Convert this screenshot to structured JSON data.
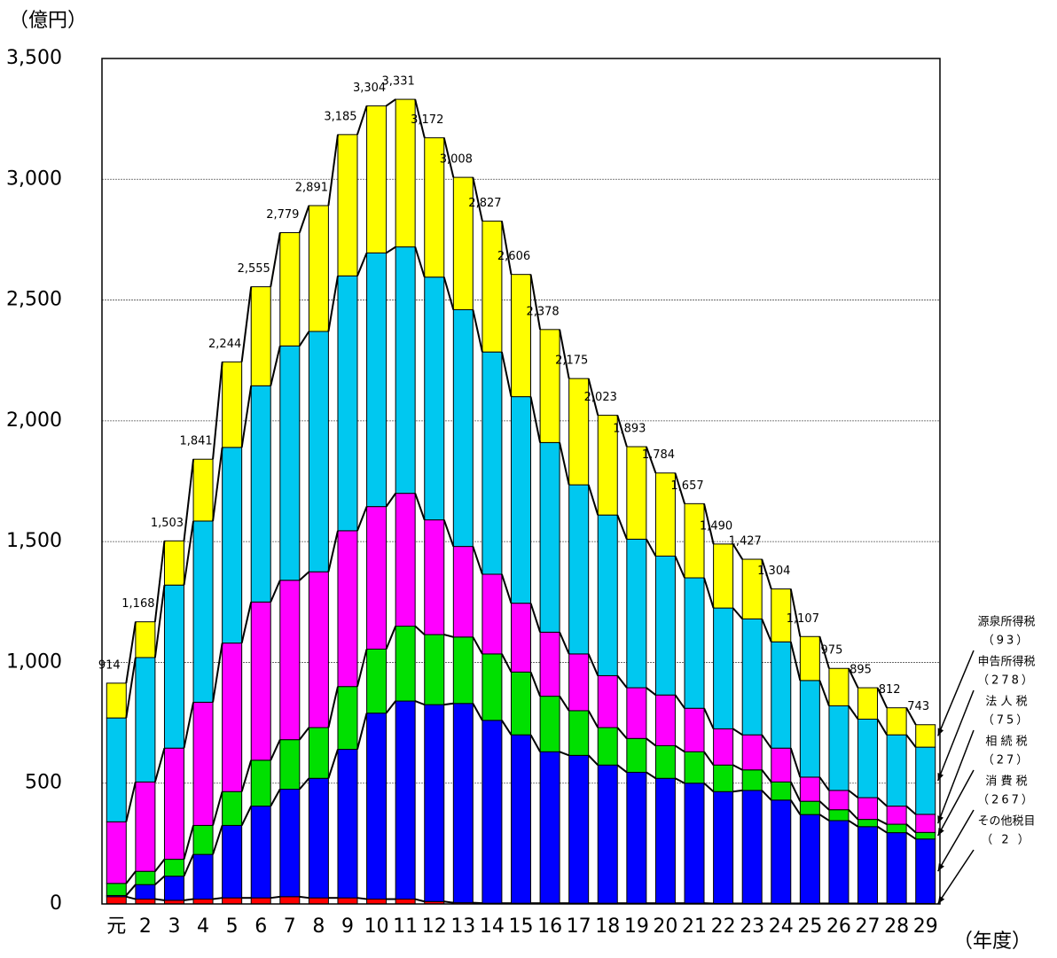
{
  "chart_data": {
    "type": "stacked-bar",
    "y_label": "（億円）",
    "x_label": "（年度）",
    "categories": [
      "元",
      "2",
      "3",
      "4",
      "5",
      "6",
      "7",
      "8",
      "9",
      "10",
      "11",
      "12",
      "13",
      "14",
      "15",
      "16",
      "17",
      "18",
      "19",
      "20",
      "21",
      "22",
      "23",
      "24",
      "25",
      "26",
      "27",
      "28",
      "29"
    ],
    "ylim": [
      0,
      3500
    ],
    "yticks": [
      0,
      500,
      {
        "value": 1000,
        "label": "1,000"
      },
      {
        "value": 1500,
        "label": "1,500"
      },
      {
        "value": 2000,
        "label": "2,000"
      },
      {
        "value": 2500,
        "label": "2,500"
      },
      {
        "value": 3000,
        "label": "3,000"
      },
      {
        "value": 3500,
        "label": "3,500"
      }
    ],
    "grid": true,
    "series": [
      {
        "name": "その他税目",
        "legend_note": "（ 2 ）",
        "color": "#ff0000",
        "values": [
          30,
          20,
          15,
          20,
          25,
          25,
          30,
          25,
          25,
          20,
          20,
          10,
          5,
          3,
          3,
          3,
          3,
          3,
          3,
          3,
          3,
          2,
          2,
          2,
          2,
          2,
          2,
          2,
          2
        ]
      },
      {
        "name": "消 費 税",
        "legend_note": "（267）",
        "color": "#0000ff",
        "values": [
          5,
          60,
          100,
          185,
          300,
          380,
          445,
          495,
          615,
          770,
          820,
          815,
          825,
          757,
          697,
          627,
          612,
          572,
          542,
          517,
          497,
          463,
          468,
          428,
          368,
          343,
          318,
          293,
          267
        ]
      },
      {
        "name": "相 続 税",
        "legend_note": "（27）",
        "color": "#00e000",
        "values": [
          50,
          55,
          70,
          120,
          140,
          190,
          205,
          210,
          260,
          265,
          310,
          290,
          275,
          275,
          260,
          230,
          185,
          155,
          140,
          135,
          130,
          110,
          85,
          75,
          55,
          45,
          30,
          35,
          27
        ]
      },
      {
        "name": "法 人 税",
        "legend_note": "（75）",
        "color": "#ff00ff",
        "values": [
          255,
          370,
          460,
          510,
          615,
          655,
          660,
          645,
          645,
          590,
          550,
          475,
          375,
          330,
          285,
          265,
          235,
          215,
          210,
          210,
          180,
          150,
          145,
          140,
          100,
          80,
          90,
          75,
          75
        ]
      },
      {
        "name": "申告所得税",
        "legend_note": "（278）",
        "color": "#00c8f0",
        "values": [
          430,
          515,
          675,
          750,
          810,
          895,
          970,
          995,
          1055,
          1050,
          1020,
          1005,
          980,
          920,
          855,
          785,
          700,
          665,
          615,
          575,
          540,
          500,
          480,
          440,
          400,
          350,
          325,
          295,
          278
        ]
      },
      {
        "name": "源泉所得税",
        "legend_note": "（93）",
        "color": "#ffff00",
        "values": [
          144,
          148,
          183,
          256,
          354,
          410,
          469,
          521,
          585,
          609,
          611,
          577,
          548,
          542,
          506,
          468,
          440,
          413,
          383,
          344,
          307,
          265,
          247,
          219,
          182,
          155,
          130,
          112,
          93
        ]
      }
    ],
    "totals": {
      "values": [
        914,
        1168,
        1503,
        1841,
        2244,
        2555,
        2779,
        2891,
        3185,
        3304,
        3331,
        3172,
        3008,
        2827,
        2606,
        2378,
        2175,
        2023,
        1893,
        1784,
        1657,
        1490,
        1427,
        1304,
        1107,
        975,
        895,
        812,
        743
      ],
      "value_labels": [
        "914",
        "1,168",
        "1,503",
        "1,841",
        "2,244",
        "2,555",
        "2,779",
        "2,891",
        "3,185",
        "3,304",
        "3,331",
        "3,172",
        "3,008",
        "2,827",
        "2,606",
        "2,378",
        "2,175",
        "2,023",
        "1,893",
        "1,784",
        "1,657",
        "1,490",
        "1,427",
        "1,304",
        "1,107",
        "975",
        "895",
        "812",
        "743"
      ]
    }
  }
}
